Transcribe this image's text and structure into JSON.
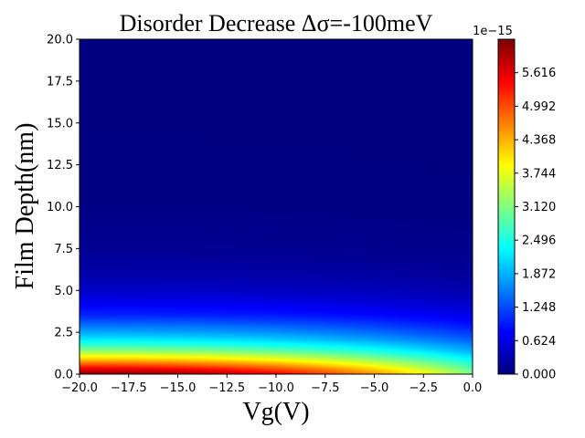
{
  "chart_data": {
    "type": "heatmap",
    "title": "Disorder Decrease Δσ=-100meV",
    "xlabel": "Vg(V)",
    "ylabel": "Film Depth(nm)",
    "xlim": [
      -20,
      0
    ],
    "ylim": [
      0,
      20
    ],
    "x_ticks": [
      -20,
      -17.5,
      -15,
      -12.5,
      -10,
      -7.5,
      -5,
      -2.5,
      0
    ],
    "x_tick_labels": [
      "−20.0",
      "−17.5",
      "−15.0",
      "−12.5",
      "−10.0",
      "−7.5",
      "−5.0",
      "−2.5",
      "0.0"
    ],
    "y_ticks": [
      0,
      2.5,
      5,
      7.5,
      10,
      12.5,
      15,
      17.5,
      20
    ],
    "y_tick_labels": [
      "0.0",
      "2.5",
      "5.0",
      "7.5",
      "10.0",
      "12.5",
      "15.0",
      "17.5",
      "20.0"
    ],
    "colormap": "jet",
    "colorbar": {
      "offset_label": "1e−15",
      "ticks": [
        0.0,
        0.624,
        1.248,
        1.872,
        2.496,
        3.12,
        3.744,
        4.368,
        4.992,
        5.616
      ],
      "tick_labels": [
        "0.000",
        "0.624",
        "1.248",
        "1.872",
        "2.496",
        "3.120",
        "3.744",
        "4.368",
        "4.992",
        "5.616"
      ],
      "vmin": 0.0,
      "vmax": 6.24
    },
    "depth_profile": {
      "depth_nm": [
        0.0,
        0.3,
        0.6,
        0.9,
        1.2,
        1.5,
        2.0,
        2.5,
        3.0,
        3.5,
        4.0,
        4.5,
        5.0,
        6.0,
        7.5,
        10.0,
        12.5,
        15.0,
        20.0
      ],
      "value_at_vg_minus20": [
        6.2,
        5.6,
        4.9,
        4.2,
        3.6,
        3.0,
        2.3,
        1.8,
        1.4,
        1.0,
        0.8,
        0.6,
        0.45,
        0.25,
        0.12,
        0.04,
        0.02,
        0.01,
        0.0
      ],
      "value_at_vg_0": [
        3.1,
        2.9,
        2.6,
        2.3,
        2.0,
        1.75,
        1.4,
        1.1,
        0.85,
        0.65,
        0.5,
        0.38,
        0.28,
        0.16,
        0.07,
        0.02,
        0.01,
        0.0,
        0.0
      ]
    }
  }
}
